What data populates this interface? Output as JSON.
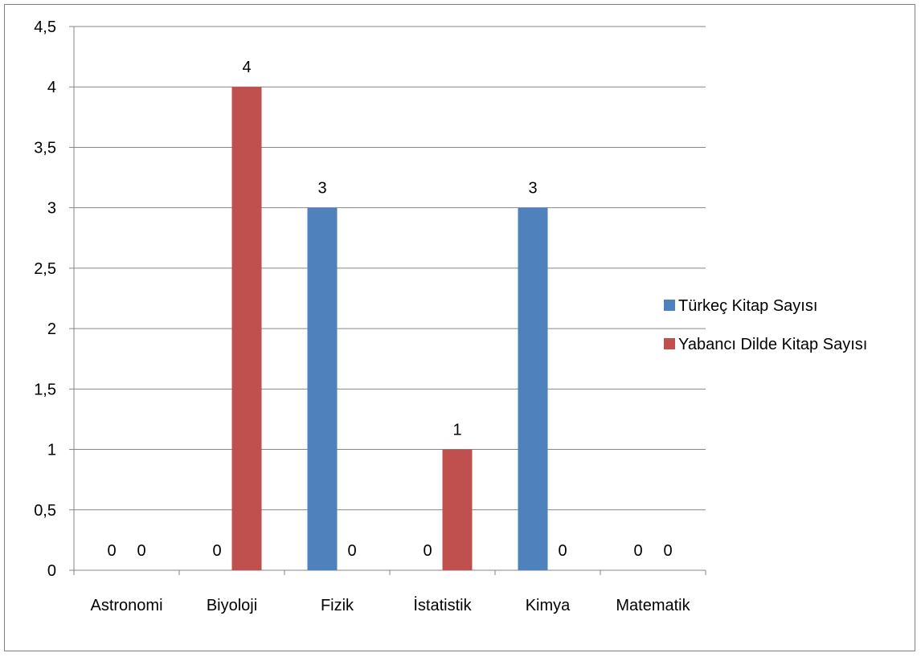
{
  "chart_data": {
    "type": "bar",
    "categories": [
      "Astronomi",
      "Biyoloji",
      "Fizik",
      "İstatistik",
      "Kimya",
      "Matematik"
    ],
    "series": [
      {
        "name": "Türkeç Kitap Sayısı",
        "values": [
          0,
          0,
          3,
          0,
          3,
          0
        ],
        "color": "#4f81bd"
      },
      {
        "name": "Yabancı Dilde Kitap Sayısı",
        "values": [
          0,
          4,
          0,
          1,
          0,
          0
        ],
        "color": "#c0504d"
      }
    ],
    "ylim": [
      0,
      4.5
    ],
    "yticks": [
      "0",
      "0,5",
      "1",
      "1,5",
      "2",
      "2,5",
      "3",
      "3,5",
      "4",
      "4,5"
    ],
    "title": "",
    "xlabel": "",
    "ylabel": "",
    "grid": true,
    "legend_position": "right",
    "data_labels": true
  }
}
